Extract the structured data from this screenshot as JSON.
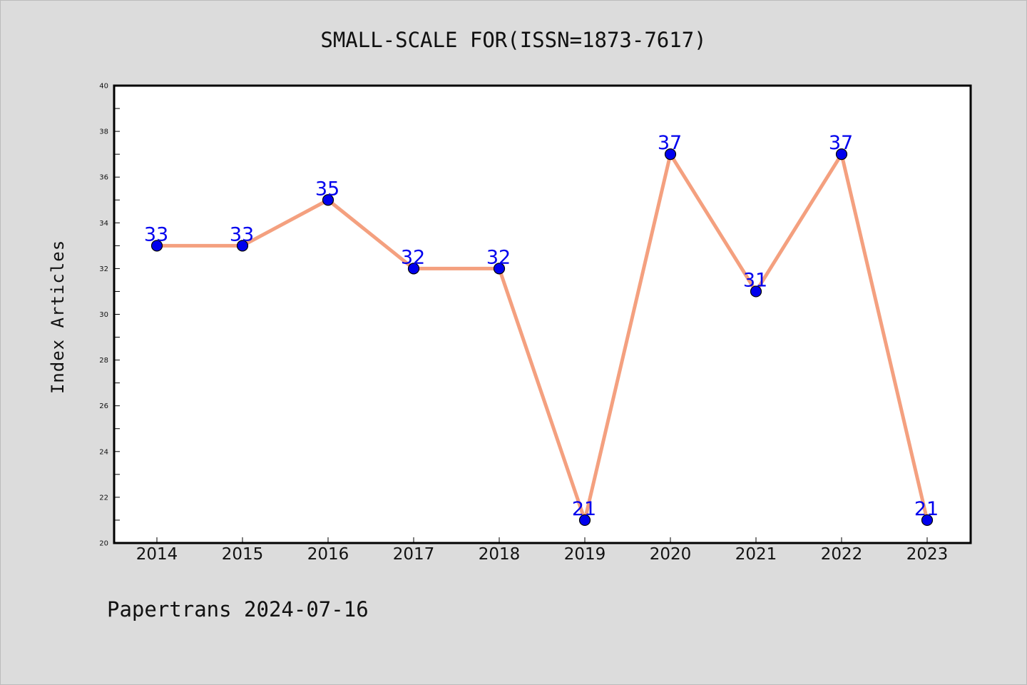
{
  "chart_data": {
    "type": "line",
    "title": "SMALL-SCALE FOR(ISSN=1873-7617)",
    "xlabel": "",
    "ylabel": "Index Articles",
    "categories": [
      "2014",
      "2015",
      "2016",
      "2017",
      "2018",
      "2019",
      "2020",
      "2021",
      "2022",
      "2023"
    ],
    "values": [
      33,
      33,
      35,
      32,
      32,
      21,
      37,
      31,
      37,
      21
    ],
    "data_labels": [
      "33",
      "33",
      "35",
      "32",
      "32",
      "21",
      "37",
      "31",
      "37",
      "21"
    ],
    "ylim": [
      20,
      40
    ],
    "yticks": [
      "20",
      "22",
      "24",
      "26",
      "28",
      "30",
      "32",
      "34",
      "36",
      "38",
      "40"
    ],
    "grid": false,
    "line_color": "#f4a07f",
    "marker_color": "#0000ee",
    "label_color": "#0000ee",
    "plot_background": "#ffffff",
    "figure_background": "#dcdcdc"
  },
  "footer": {
    "text": "Papertrans 2024-07-16"
  }
}
